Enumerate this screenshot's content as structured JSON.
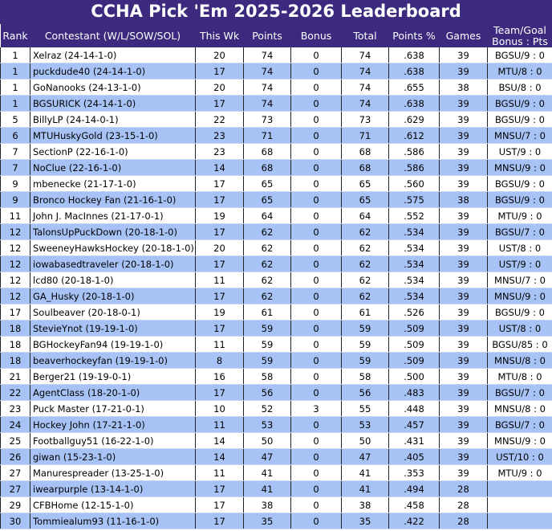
{
  "title": "CCHA Pick 'Em 2025-2026 Leaderboard",
  "table": {
    "headers": [
      "Rank",
      "Contestant (W/L/SOW/SOL)",
      "This Wk",
      "Points",
      "Bonus",
      "Total",
      "Points %",
      "Games",
      "Team/Goal Bonus : Pts"
    ],
    "rows": [
      [
        1,
        "Xelraz (24-14-1-0)",
        20,
        74,
        0,
        74,
        ".638",
        39,
        "BGSU/9 : 0"
      ],
      [
        1,
        "puckdude40 (24-14-1-0)",
        17,
        74,
        0,
        74,
        ".638",
        39,
        "MTU/8 : 0"
      ],
      [
        1,
        "GoNanooks (24-13-1-0)",
        20,
        74,
        0,
        74,
        ".655",
        38,
        "BSU/8 : 0"
      ],
      [
        1,
        "BGSURICK (24-14-1-0)",
        17,
        74,
        0,
        74,
        ".638",
        39,
        "BGSU/9 : 0"
      ],
      [
        5,
        "BillyLP (24-14-0-1)",
        22,
        73,
        0,
        73,
        ".629",
        39,
        "BGSU/9 : 0"
      ],
      [
        6,
        "MTUHuskyGold (23-15-1-0)",
        23,
        71,
        0,
        71,
        ".612",
        39,
        "MNSU/7 : 0"
      ],
      [
        7,
        "SectionP (22-16-1-0)",
        23,
        68,
        0,
        68,
        ".586",
        39,
        "UST/9 : 0"
      ],
      [
        7,
        "NoClue (22-16-1-0)",
        14,
        68,
        0,
        68,
        ".586",
        39,
        "MNSU/9 : 0"
      ],
      [
        9,
        "mbenecke (21-17-1-0)",
        17,
        65,
        0,
        65,
        ".560",
        39,
        "BGSU/9 : 0"
      ],
      [
        9,
        "Bronco Hockey Fan (21-16-1-0)",
        17,
        65,
        0,
        65,
        ".575",
        38,
        "BGSU/9 : 0"
      ],
      [
        11,
        "John J. MacInnes (21-17-0-1)",
        19,
        64,
        0,
        64,
        ".552",
        39,
        "MTU/9 : 0"
      ],
      [
        12,
        "TalonsUpPuckDown (20-18-1-0)",
        17,
        62,
        0,
        62,
        ".534",
        39,
        "BGSU/7 : 0"
      ],
      [
        12,
        "SweeneyHawksHockey (20-18-1-0)",
        20,
        62,
        0,
        62,
        ".534",
        39,
        "UST/8 : 0"
      ],
      [
        12,
        "iowabasedtraveler (20-18-1-0)",
        17,
        62,
        0,
        62,
        ".534",
        39,
        "UST/9 : 0"
      ],
      [
        12,
        "lcd80 (20-18-1-0)",
        11,
        62,
        0,
        62,
        ".534",
        39,
        "MNSU/7 : 0"
      ],
      [
        12,
        "GA_Husky (20-18-1-0)",
        17,
        62,
        0,
        62,
        ".534",
        39,
        "MNSU/9 : 0"
      ],
      [
        17,
        "Soulbeaver (20-18-0-1)",
        19,
        61,
        0,
        61,
        ".526",
        39,
        "BGSU/9 : 0"
      ],
      [
        18,
        "StevieYnot (19-19-1-0)",
        17,
        59,
        0,
        59,
        ".509",
        39,
        "UST/8 : 0"
      ],
      [
        18,
        "BGHockeyFan94 (19-19-1-0)",
        11,
        59,
        0,
        59,
        ".509",
        39,
        "BGSU/85 : 0"
      ],
      [
        18,
        "beaverhockeyfan (19-19-1-0)",
        8,
        59,
        0,
        59,
        ".509",
        39,
        "MNSU/8 : 0"
      ],
      [
        21,
        "Berger21 (19-19-0-1)",
        16,
        58,
        0,
        58,
        ".500",
        39,
        "MTU/8 : 0"
      ],
      [
        22,
        "AgentClass (18-20-1-0)",
        17,
        56,
        0,
        56,
        ".483",
        39,
        "BGSU/7 : 0"
      ],
      [
        23,
        "Puck Master (17-21-0-1)",
        10,
        52,
        3,
        55,
        ".448",
        39,
        "MNSU/8 : 0"
      ],
      [
        24,
        "Hockey John (17-21-1-0)",
        11,
        53,
        0,
        53,
        ".457",
        39,
        "BGSU/7 : 0"
      ],
      [
        25,
        "Footballguy51 (16-22-1-0)",
        14,
        50,
        0,
        50,
        ".431",
        39,
        "MNSU/9 : 0"
      ],
      [
        26,
        "giwan (15-23-1-0)",
        14,
        47,
        0,
        47,
        ".405",
        39,
        "UST/10 : 0"
      ],
      [
        27,
        "Manurespreader (13-25-1-0)",
        11,
        41,
        0,
        41,
        ".353",
        39,
        "MTU/9 : 0"
      ],
      [
        27,
        "iwearpurple (13-14-1-0)",
        17,
        41,
        0,
        41,
        ".494",
        28
      ],
      [
        29,
        "CFBHome (12-15-1-0)",
        17,
        38,
        0,
        38,
        ".458",
        28
      ],
      [
        30,
        "Tommiealum93 (11-16-1-0)",
        17,
        35,
        0,
        35,
        ".422",
        28
      ]
    ]
  }
}
